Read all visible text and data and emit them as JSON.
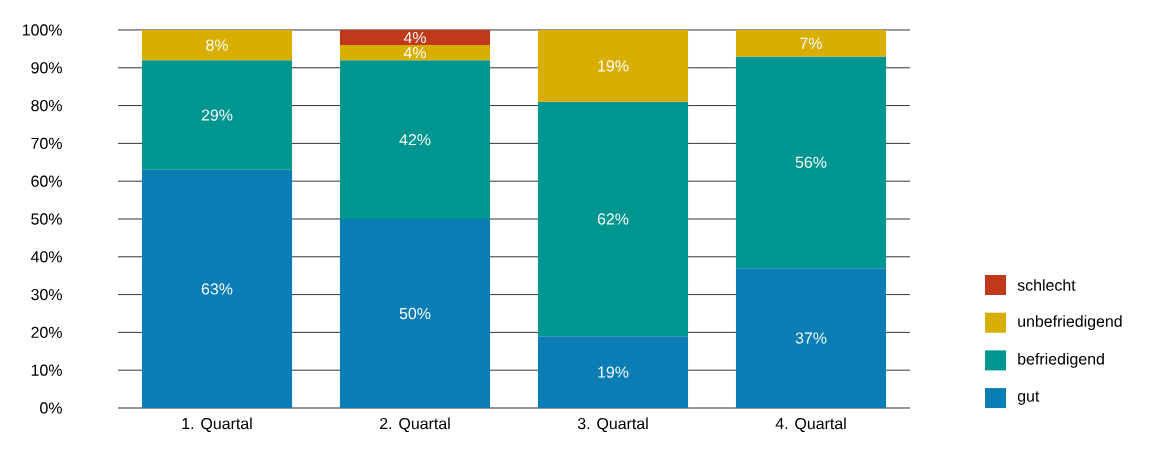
{
  "chart_data": {
    "type": "bar",
    "stacked": true,
    "categories": [
      "1. Quartal",
      "2. Quartal",
      "3. Quartal",
      "4. Quartal"
    ],
    "series": [
      {
        "name": "gut",
        "color": "#0a7db5",
        "values": [
          63,
          50,
          19,
          37
        ],
        "value_labels": [
          "63%",
          "50%",
          "19%",
          "37%"
        ]
      },
      {
        "name": "befriedigend",
        "color": "#009690",
        "values": [
          29,
          42,
          62,
          56
        ],
        "value_labels": [
          "29%",
          "42%",
          "62%",
          "56%"
        ]
      },
      {
        "name": "unbefriedigend",
        "color": "#d8ae00",
        "values": [
          8,
          4,
          19,
          7
        ],
        "value_labels": [
          "8%",
          "4%",
          "19%",
          "7%"
        ]
      },
      {
        "name": "schlecht",
        "color": "#c0391b",
        "values": [
          null,
          4,
          null,
          null
        ],
        "value_labels": [
          null,
          "4%",
          null,
          null
        ]
      }
    ],
    "ylim": [
      0,
      100
    ],
    "yticks": [
      {
        "value": 0,
        "label": "0%"
      },
      {
        "value": 10,
        "label": "10%"
      },
      {
        "value": 20,
        "label": "20%"
      },
      {
        "value": 30,
        "label": "30%"
      },
      {
        "value": 40,
        "label": "40%"
      },
      {
        "value": 50,
        "label": "50%"
      },
      {
        "value": 60,
        "label": "60%"
      },
      {
        "value": 70,
        "label": "70%"
      },
      {
        "value": 80,
        "label": "80%"
      },
      {
        "value": 90,
        "label": "90%"
      },
      {
        "value": 100,
        "label": "100%"
      }
    ],
    "grid": "y",
    "legend": "right"
  }
}
